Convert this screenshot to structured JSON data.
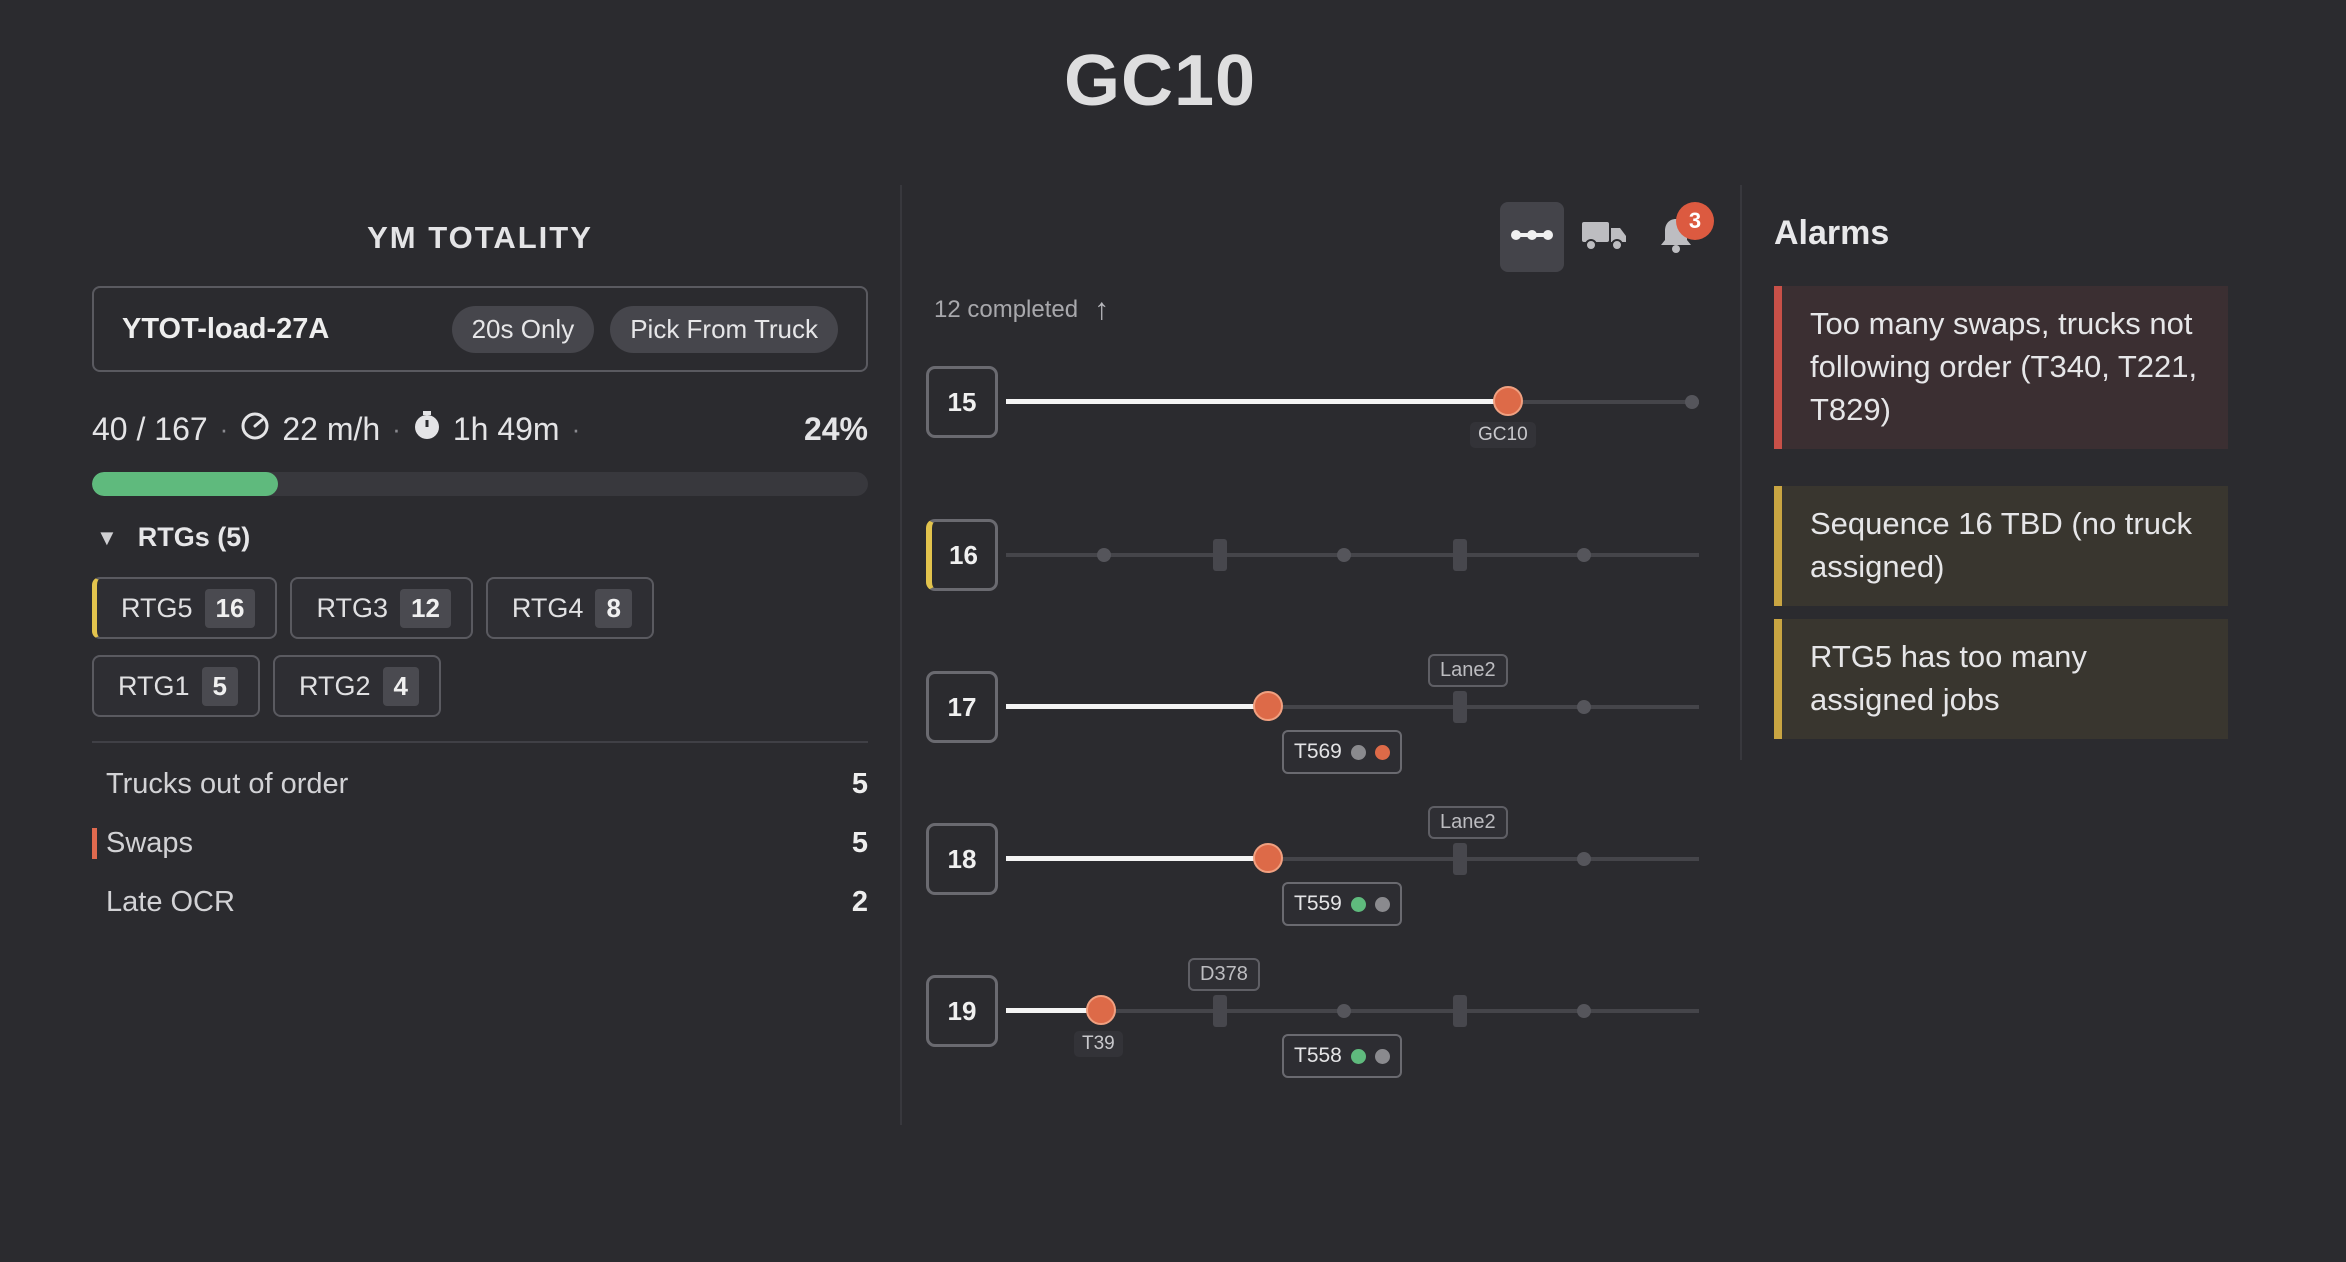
{
  "title": "GC10",
  "left": {
    "section_title": "YM TOTALITY",
    "job_name": "YTOT-load-27A",
    "pills": [
      "20s Only",
      "Pick From Truck"
    ],
    "progress_text": "40 / 167",
    "speed": "22 m/h",
    "time": "1h 49m",
    "percent": "24%",
    "progress_fraction": 0.24,
    "rtg_header": "RTGs (5)",
    "rtgs": [
      {
        "name": "RTG5",
        "count": "16"
      },
      {
        "name": "RTG3",
        "count": "12"
      },
      {
        "name": "RTG4",
        "count": "8"
      },
      {
        "name": "RTG1",
        "count": "5"
      },
      {
        "name": "RTG2",
        "count": "4"
      }
    ],
    "metrics": [
      {
        "label": "Trucks out of order",
        "value": "5"
      },
      {
        "label": "Swaps",
        "value": "5"
      },
      {
        "label": "Late OCR",
        "value": "2"
      }
    ]
  },
  "middle": {
    "toolbar": {
      "route_icon": "route-icon",
      "truck_icon": "truck-icon",
      "bell_icon": "bell-icon",
      "alarm_count": "3"
    },
    "completed_text": "12 completed",
    "sequences": [
      {
        "number": "15",
        "tag": "GC10"
      },
      {
        "number": "16"
      },
      {
        "number": "17",
        "lane": "Lane2",
        "truck": "T569"
      },
      {
        "number": "18",
        "lane": "Lane2",
        "truck": "T559"
      },
      {
        "number": "19",
        "lane": "D378",
        "marker": "T39",
        "truck": "T558"
      }
    ],
    "colors": {
      "accent": "#dd6a48",
      "green": "#5fba7d",
      "grey": "#8a8a8e",
      "warn": "#e2c34d"
    }
  },
  "alarms": {
    "title": "Alarms",
    "items": [
      {
        "text": "Too many swaps, trucks not following order (T340, T221, T829)",
        "level": "red"
      },
      {
        "text": "Sequence 16 TBD (no truck assigned)",
        "level": "yellow"
      },
      {
        "text": "RTG5 has too many assigned jobs",
        "level": "yellow"
      }
    ]
  }
}
